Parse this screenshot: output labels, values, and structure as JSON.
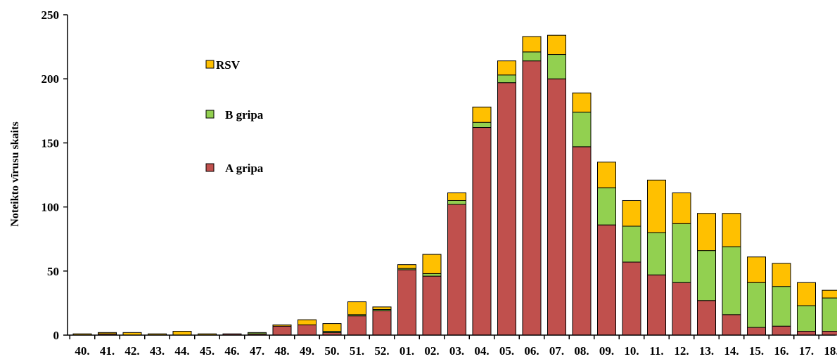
{
  "chart_data": {
    "type": "bar",
    "stacked": true,
    "title": "",
    "xlabel": "",
    "ylabel": "Noteikto  vīrusu  skaits",
    "ylim": [
      0,
      250
    ],
    "yticks": [
      0,
      50,
      100,
      150,
      200,
      250
    ],
    "grid": false,
    "legend_position": "left-inside",
    "categories": [
      "40.",
      "41.",
      "42.",
      "43.",
      "44.",
      "45.",
      "46.",
      "47.",
      "48.",
      "49.",
      "50.",
      "51.",
      "52.",
      "01.",
      "02.",
      "03.",
      "04.",
      "05.",
      "06.",
      "07.",
      "08.",
      "09.",
      "10.",
      "11.",
      "12.",
      "13.",
      "14.",
      "15.",
      "16.",
      "17.",
      "18."
    ],
    "series": [
      {
        "name": "A gripa",
        "color": "#C0504D",
        "values": [
          0,
          1,
          0,
          0,
          0,
          0,
          1,
          1,
          7,
          8,
          2,
          15,
          19,
          51,
          46,
          102,
          162,
          197,
          214,
          200,
          147,
          86,
          57,
          47,
          41,
          27,
          16,
          6,
          7,
          3,
          3
        ]
      },
      {
        "name": "B gripa",
        "color": "#92D050",
        "values": [
          0,
          0,
          0,
          0,
          0,
          0,
          0,
          1,
          0,
          0,
          1,
          1,
          1,
          1,
          2,
          3,
          4,
          6,
          7,
          19,
          27,
          29,
          28,
          33,
          46,
          39,
          53,
          35,
          31,
          20,
          26
        ]
      },
      {
        "name": "RSV",
        "color": "#FFC000",
        "values": [
          1,
          1,
          2,
          1,
          3,
          1,
          0,
          0,
          1,
          4,
          6,
          10,
          2,
          3,
          15,
          6,
          12,
          11,
          12,
          15,
          15,
          20,
          20,
          41,
          24,
          29,
          26,
          20,
          18,
          18,
          6
        ]
      }
    ]
  }
}
